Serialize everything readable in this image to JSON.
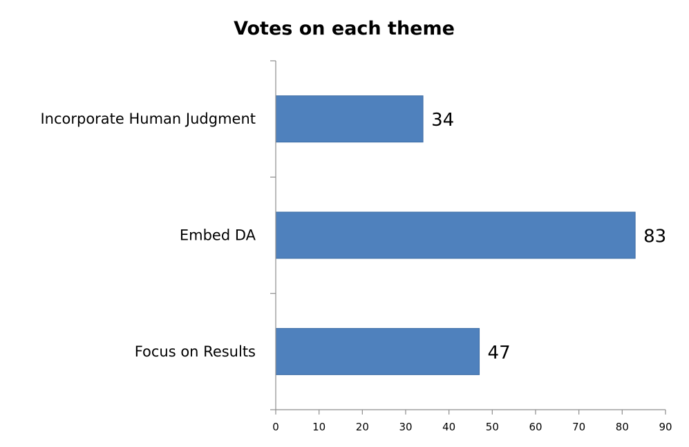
{
  "chart_data": {
    "type": "bar",
    "orientation": "horizontal",
    "title": "Votes on each theme",
    "categories": [
      "Incorporate Human Judgment",
      "Embed DA",
      "Focus on Results"
    ],
    "values": [
      34,
      83,
      47
    ],
    "data_labels": [
      "34",
      "83",
      "47"
    ],
    "xlim": [
      0,
      90
    ],
    "x_ticks": [
      0,
      10,
      20,
      30,
      40,
      50,
      60,
      70,
      80,
      90
    ],
    "x_tick_labels": [
      "0",
      "10",
      "20",
      "30",
      "40",
      "50",
      "60",
      "70",
      "80",
      "90"
    ],
    "grid": false,
    "legend": "none",
    "bar_color": "#4f81bd",
    "bar_edge_color": "#3a6aa3"
  }
}
